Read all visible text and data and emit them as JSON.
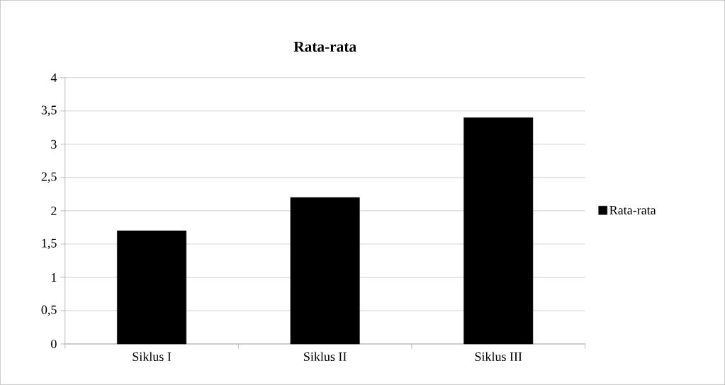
{
  "chart_data": {
    "type": "bar",
    "title": "Rata-rata",
    "categories": [
      "Siklus I",
      "Siklus II",
      "Siklus III"
    ],
    "series": [
      {
        "name": "Rata-rata",
        "color": "#000000",
        "values": [
          1.7,
          2.2,
          3.4
        ]
      }
    ],
    "ylim": [
      0,
      4
    ],
    "yticks": [
      0,
      {
        "value": 0.5,
        "label": "0,5"
      },
      1,
      {
        "value": 1.5,
        "label": "1,5"
      },
      2,
      {
        "value": 2.5,
        "label": "2,5"
      },
      3,
      {
        "value": 3.5,
        "label": "3,5"
      },
      4
    ],
    "grid": "y",
    "legend": "right"
  }
}
